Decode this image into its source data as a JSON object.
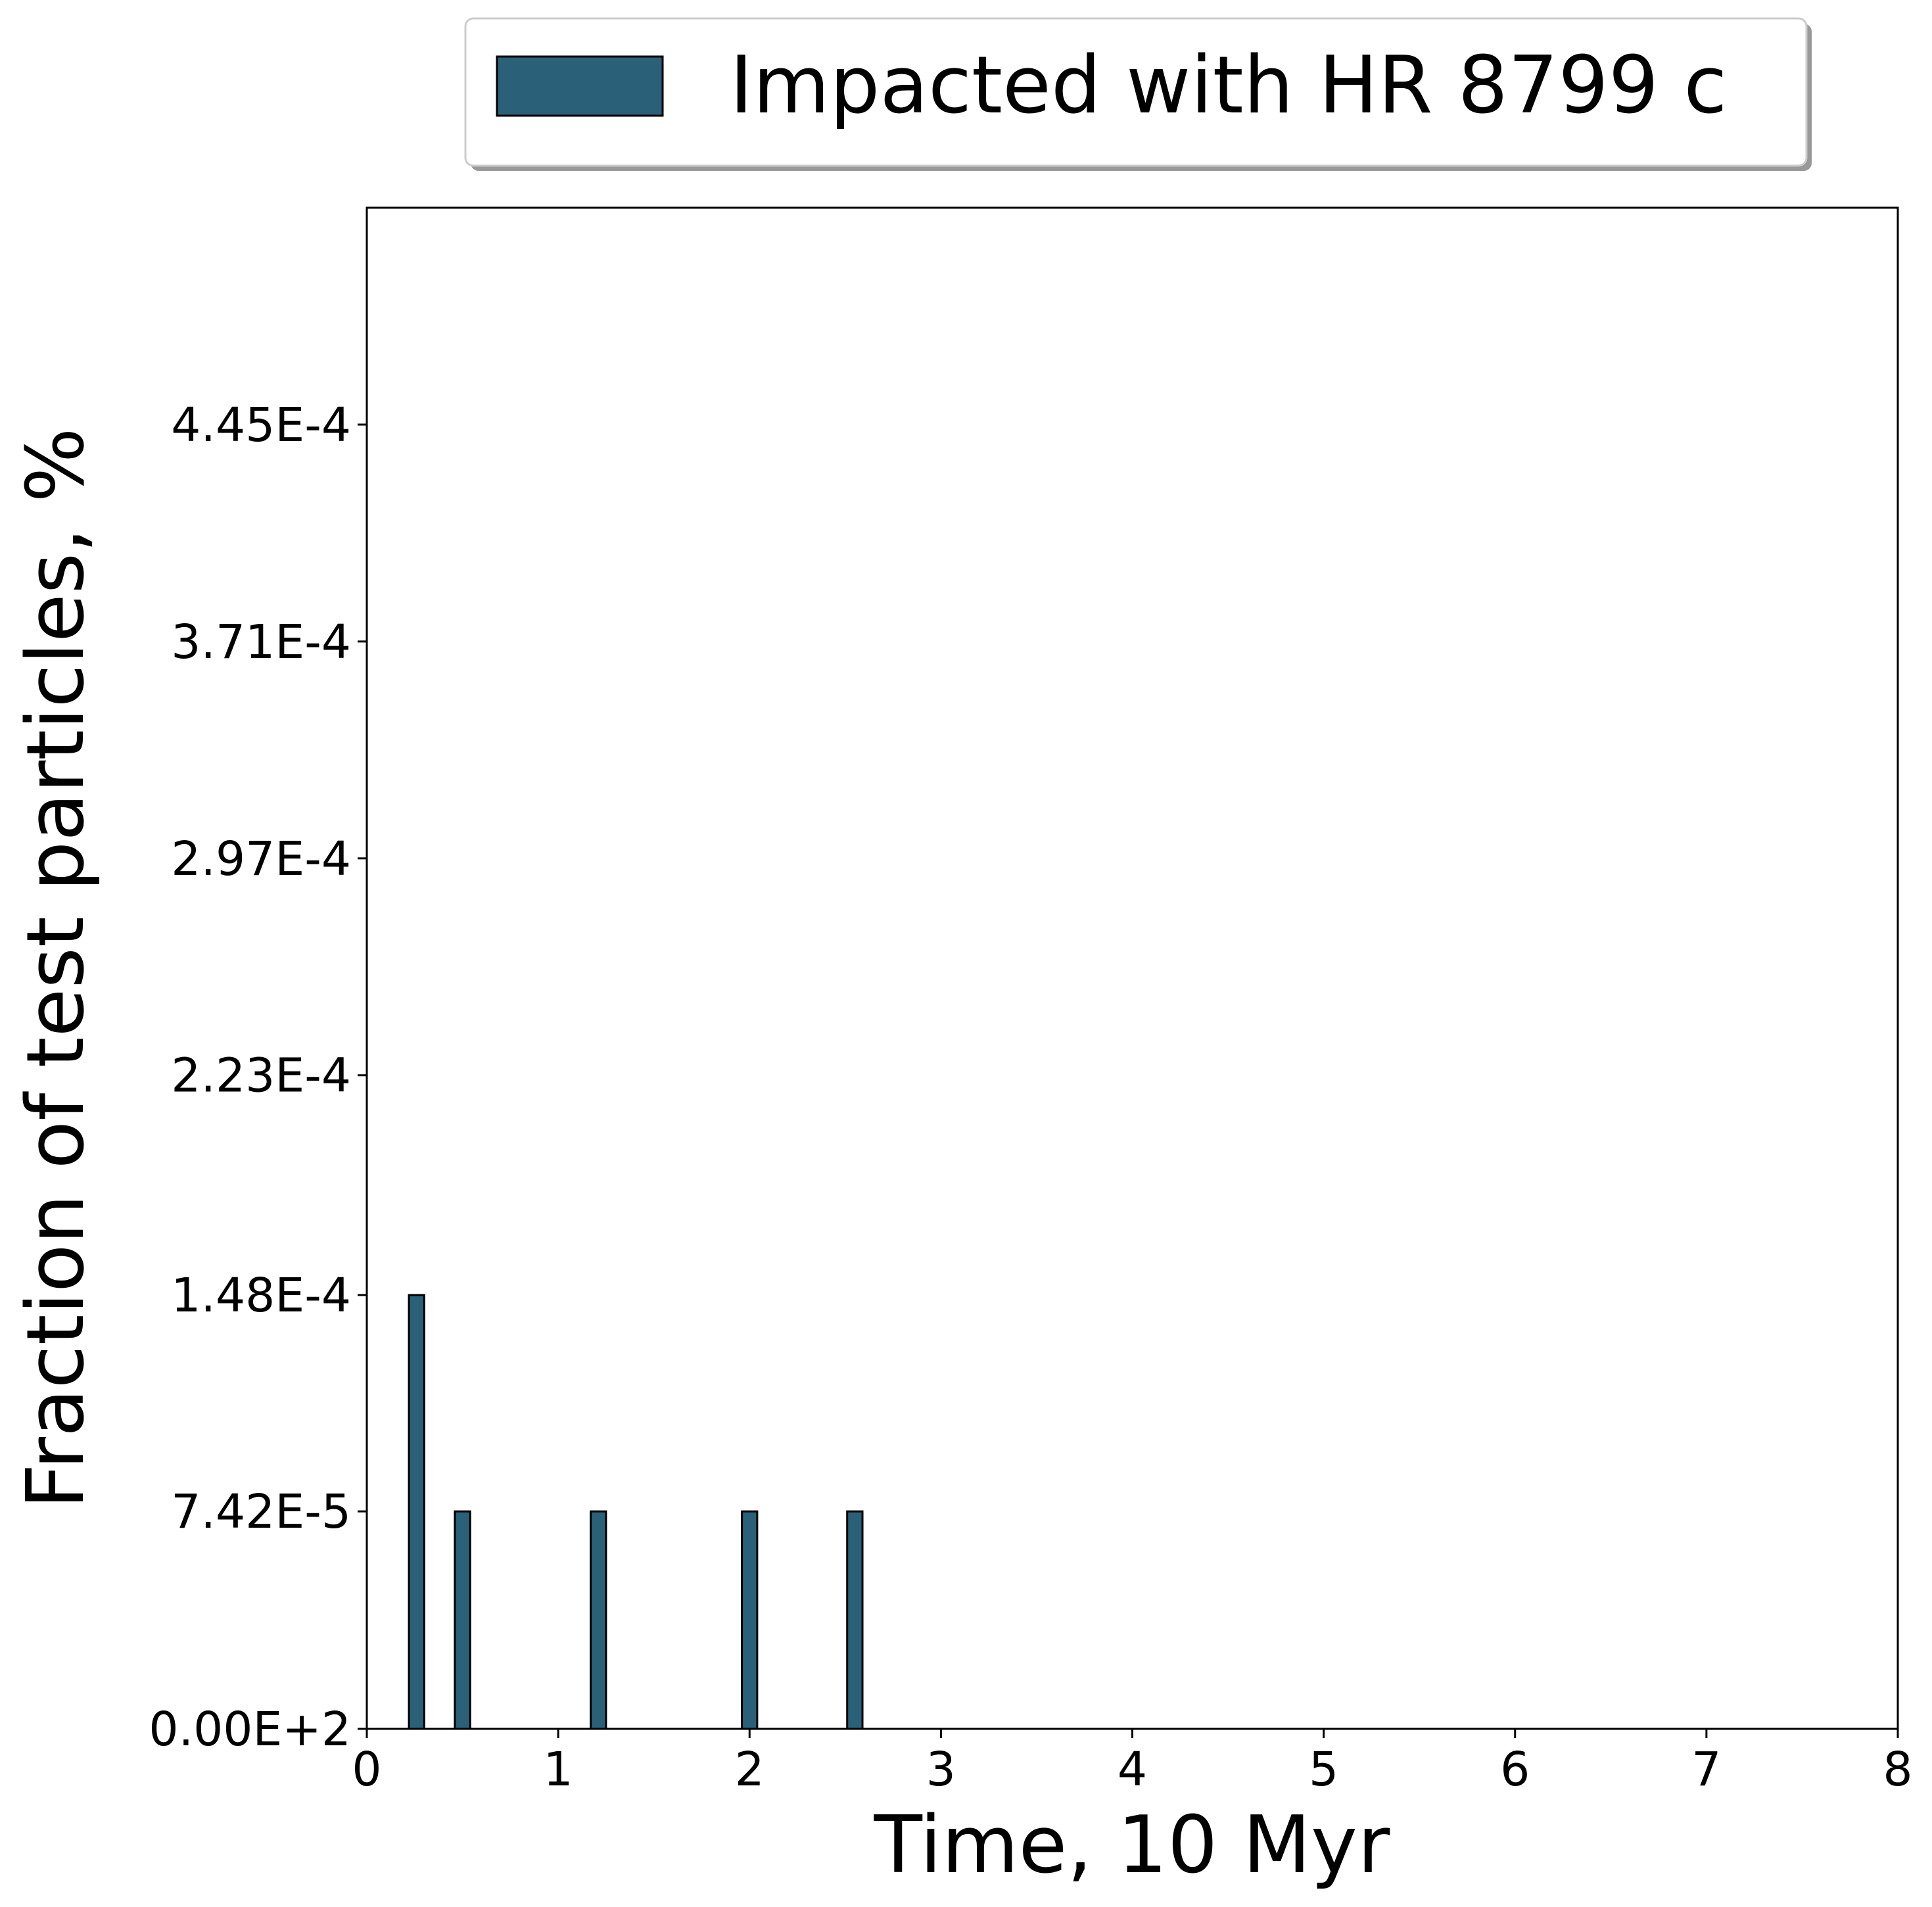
{
  "chart_data": {
    "type": "bar",
    "xlabel": "Time, 10 Myr",
    "ylabel": "Fraction of test particles, %",
    "xlim": [
      0,
      8
    ],
    "ylim": [
      0,
      0.000519
    ],
    "grid": false,
    "legend_position": "top-center",
    "x_ticks": [
      "0",
      "1",
      "2",
      "3",
      "4",
      "5",
      "6",
      "7",
      "8"
    ],
    "y_ticks": [
      {
        "value": 0,
        "label": "0.00E+2"
      },
      {
        "value": 7.42e-05,
        "label": "7.42E-5"
      },
      {
        "value": 0.000148,
        "label": "1.48E-4"
      },
      {
        "value": 0.000223,
        "label": "2.23E-4"
      },
      {
        "value": 0.000297,
        "label": "2.97E-4"
      },
      {
        "value": 0.000371,
        "label": "3.71E-4"
      },
      {
        "value": 0.000445,
        "label": "4.45E-4"
      }
    ],
    "series": [
      {
        "name": "Impacted with HR 8799 c",
        "color": "#2a6179",
        "bin_width": 0.08,
        "bars": [
          {
            "x": 0.26,
            "value": 0.000148
          },
          {
            "x": 0.5,
            "value": 7.42e-05
          },
          {
            "x": 1.21,
            "value": 7.42e-05
          },
          {
            "x": 2.0,
            "value": 7.42e-05
          },
          {
            "x": 2.55,
            "value": 7.42e-05
          }
        ]
      }
    ]
  }
}
